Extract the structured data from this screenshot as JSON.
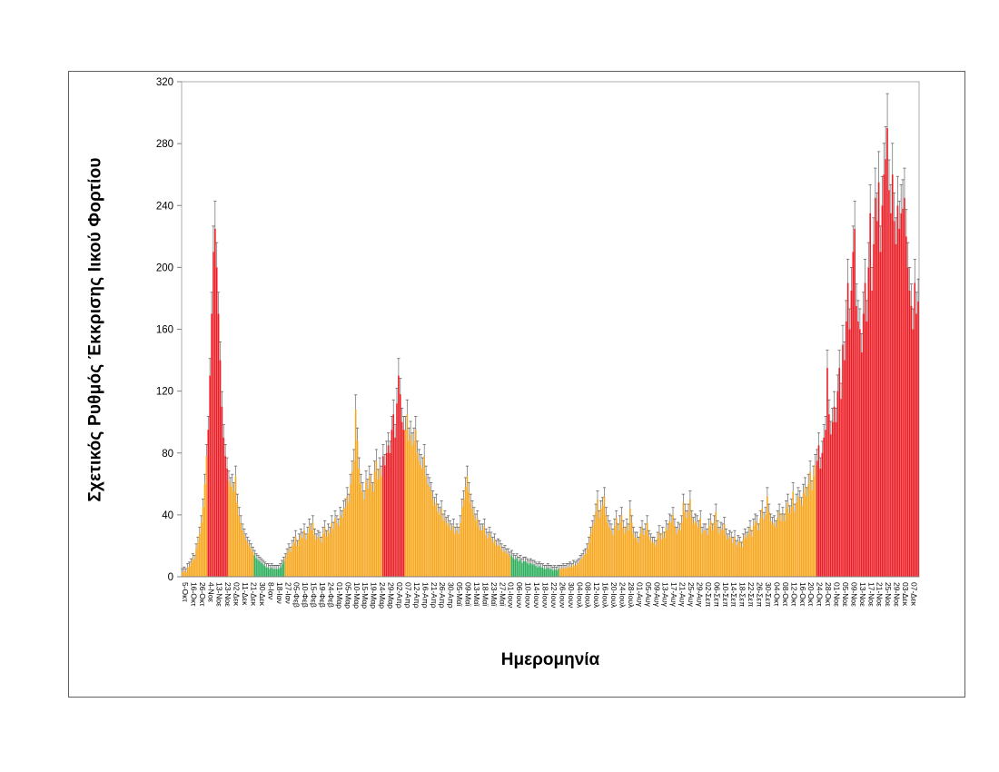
{
  "chart_data": {
    "type": "bar",
    "title": "",
    "xlabel": "Ημερομηνία",
    "ylabel": "Σχετικός Ρυθμός Έκκρισης Ιικού Φορτίου",
    "ylim": [
      0,
      320
    ],
    "y_ticks": [
      0,
      40,
      80,
      120,
      160,
      200,
      240,
      280,
      320
    ],
    "grid": false,
    "legend": null,
    "bar_count": 430,
    "x_tick_every": 5,
    "x_tick_labels": [
      "5-Οκτ",
      "16-Οκτ",
      "26-Οκτ",
      "4-Νοε",
      "13-Νοε",
      "23-Νοε",
      "02-Δεκ",
      "11-Δεκ",
      "21-Δεκ",
      "30-Δεκ",
      "8-Ιαν",
      "18-Ιαν",
      "27-Ιαν",
      "05-Φεβ",
      "10-Φεβ",
      "15-Φεβ",
      "19-Φεβ",
      "24-Φεβ",
      "01-Μαρ",
      "05-Μαρ",
      "10-Μαρ",
      "15-Μαρ",
      "19-Μαρ",
      "24-Μαρ",
      "29-Μαρ",
      "02-Απρ",
      "07-Απρ",
      "12-Απρ",
      "16-Απρ",
      "21-Απρ",
      "26-Απρ",
      "30-Απρ",
      "05-Μαϊ",
      "09-Μαϊ",
      "13-Μαϊ",
      "18-Μαϊ",
      "23-Μαϊ",
      "27-Μαϊ",
      "01-Ιουν",
      "06-Ιουν",
      "10-Ιουν",
      "14-Ιουν",
      "18-Ιουν",
      "22-Ιουν",
      "26-Ιουν",
      "30-Ιουν",
      "04-Ιουλ",
      "08-Ιουλ",
      "12-Ιουλ",
      "16-Ιουλ",
      "20-Ιουλ",
      "24-Ιουλ",
      "28-Ιουλ",
      "01-Αυγ",
      "05-Αυγ",
      "09-Αυγ",
      "13-Αυγ",
      "17-Αυγ",
      "21-Αυγ",
      "25-Αυγ",
      "29-Αυγ",
      "02-Σεπ",
      "06-Σεπ",
      "10-Σεπ",
      "14-Σεπ",
      "18-Σεπ",
      "22-Σεπ",
      "26-Σεπ",
      "30-Σεπ",
      "04-Οκτ",
      "08-Οκτ",
      "12-Οκτ",
      "16-Οκτ",
      "20-Οκτ",
      "24-Οκτ",
      "28-Οκτ",
      "01-Νοε",
      "05-Νοε",
      "09-Νοε",
      "13-Νοε",
      "17-Νοε",
      "21-Νοε",
      "25-Νοε",
      "29-Νοε",
      "03-Δεκ",
      "07-Δεκ"
    ],
    "values": [
      3,
      4,
      3,
      6,
      7,
      9,
      12,
      11,
      18,
      22,
      28,
      35,
      45,
      60,
      78,
      95,
      130,
      170,
      210,
      225,
      200,
      170,
      140,
      110,
      90,
      78,
      70,
      62,
      58,
      60,
      55,
      65,
      48,
      40,
      35,
      30,
      27,
      24,
      22,
      20,
      18,
      16,
      14,
      12,
      11,
      10,
      9,
      8,
      7,
      6,
      6,
      5,
      6,
      5,
      5,
      5,
      5,
      6,
      8,
      10,
      12,
      15,
      18,
      16,
      20,
      22,
      26,
      20,
      24,
      27,
      25,
      30,
      24,
      28,
      33,
      30,
      35,
      27,
      24,
      26,
      25,
      22,
      28,
      32,
      26,
      30,
      28,
      35,
      31,
      38,
      35,
      33,
      40,
      38,
      44,
      45,
      52,
      48,
      60,
      68,
      75,
      108,
      88,
      70,
      60,
      55,
      50,
      62,
      57,
      65,
      60,
      55,
      68,
      75,
      63,
      70,
      65,
      78,
      72,
      80,
      85,
      80,
      95,
      105,
      90,
      112,
      130,
      118,
      100,
      95,
      95,
      105,
      88,
      92,
      85,
      88,
      95,
      80,
      75,
      72,
      70,
      78,
      65,
      60,
      58,
      55,
      50,
      46,
      48,
      42,
      40,
      44,
      36,
      38,
      34,
      35,
      32,
      30,
      33,
      28,
      30,
      28,
      35,
      45,
      50,
      58,
      65,
      55,
      48,
      44,
      40,
      36,
      38,
      32,
      30,
      30,
      33,
      27,
      25,
      28,
      25,
      22,
      24,
      20,
      21,
      20,
      18,
      16,
      17,
      15,
      15,
      13,
      14,
      12,
      11,
      12,
      10,
      11,
      9,
      10,
      10,
      9,
      8,
      9,
      8,
      8,
      7,
      6,
      7,
      6,
      6,
      5,
      5,
      6,
      5,
      5,
      4,
      5,
      4,
      5,
      5,
      5,
      6,
      5,
      6,
      6,
      7,
      6,
      8,
      7,
      8,
      9,
      11,
      12,
      14,
      15,
      18,
      22,
      28,
      32,
      35,
      42,
      50,
      38,
      44,
      46,
      52,
      40,
      35,
      32,
      30,
      27,
      33,
      38,
      30,
      35,
      40,
      32,
      28,
      33,
      30,
      44,
      35,
      28,
      25,
      25,
      22,
      28,
      32,
      27,
      30,
      35,
      26,
      24,
      22,
      22,
      20,
      25,
      29,
      24,
      28,
      25,
      32,
      30,
      36,
      35,
      40,
      33,
      28,
      31,
      30,
      35,
      48,
      42,
      38,
      42,
      50,
      38,
      34,
      36,
      35,
      32,
      38,
      28,
      30,
      30,
      27,
      33,
      36,
      30,
      35,
      42,
      32,
      28,
      31,
      30,
      34,
      27,
      24,
      26,
      25,
      22,
      26,
      20,
      23,
      22,
      19,
      24,
      27,
      25,
      28,
      32,
      26,
      33,
      36,
      35,
      30,
      38,
      44,
      37,
      40,
      52,
      42,
      36,
      34,
      35,
      32,
      38,
      42,
      36,
      40,
      36,
      44,
      48,
      41,
      45,
      55,
      42,
      48,
      52,
      50,
      46,
      54,
      58,
      52,
      60,
      68,
      56,
      65,
      72,
      75,
      85,
      70,
      80,
      90,
      95,
      135,
      105,
      92,
      100,
      110,
      100,
      120,
      135,
      115,
      150,
      140,
      165,
      190,
      160,
      185,
      210,
      225,
      175,
      165,
      160,
      145,
      170,
      190,
      165,
      200,
      235,
      185,
      215,
      245,
      230,
      255,
      210,
      240,
      260,
      270,
      290,
      250,
      235,
      260,
      230,
      215,
      240,
      225,
      235,
      238,
      245,
      220,
      200,
      185,
      175,
      160,
      190,
      170,
      178
    ],
    "colors": {
      "low": "#2DB05D",
      "medium": "#F8A61C",
      "high": "#ED1C24"
    },
    "color_segments": [
      {
        "from": 0,
        "to": 14,
        "level": "medium"
      },
      {
        "from": 15,
        "to": 26,
        "level": "high"
      },
      {
        "from": 27,
        "to": 41,
        "level": "medium"
      },
      {
        "from": 42,
        "to": 59,
        "level": "low"
      },
      {
        "from": 60,
        "to": 116,
        "level": "medium"
      },
      {
        "from": 117,
        "to": 129,
        "level": "high"
      },
      {
        "from": 130,
        "to": 191,
        "level": "medium"
      },
      {
        "from": 192,
        "to": 219,
        "level": "low"
      },
      {
        "from": 220,
        "to": 369,
        "level": "medium"
      },
      {
        "from": 370,
        "to": 429,
        "level": "high"
      }
    ],
    "error_bars": {
      "side": "upper",
      "fraction": 0.07,
      "base": 2,
      "color": "#595959"
    },
    "frame_color": "#ACACAC",
    "axis_color": "#808080"
  }
}
